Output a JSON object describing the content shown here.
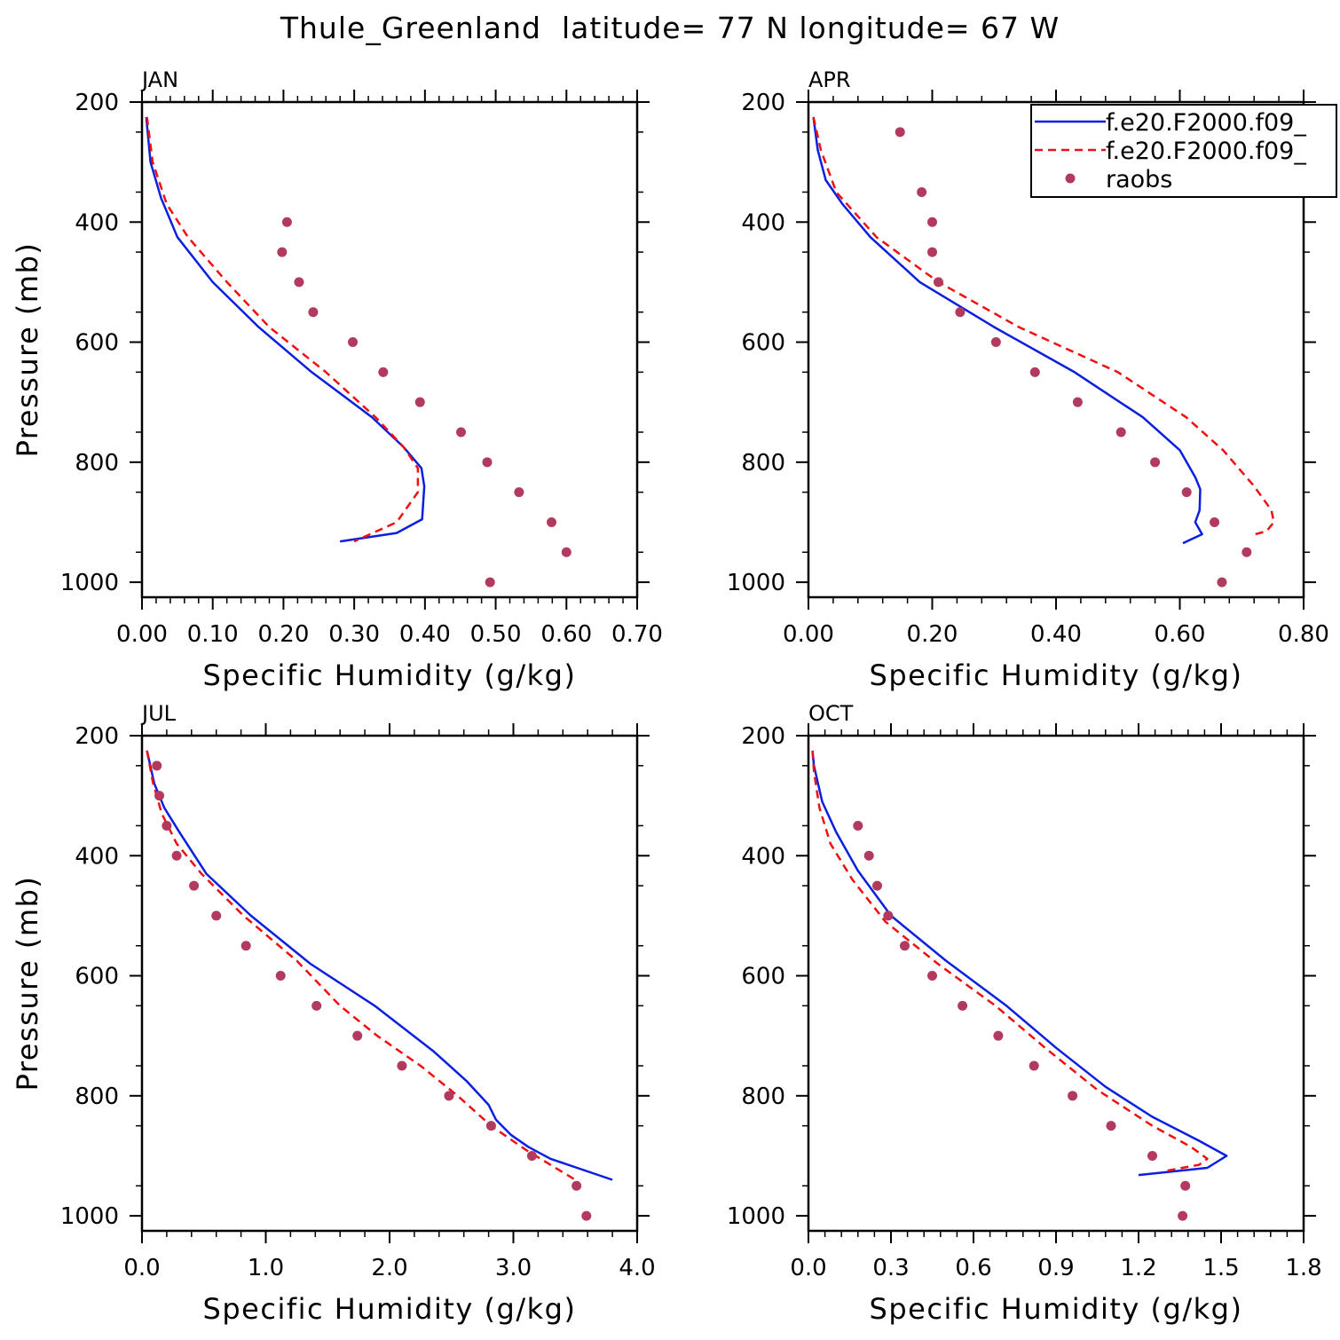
{
  "figure": {
    "title": "Thule_Greenland  latitude= 77 N longitude= 67 W"
  },
  "colors": {
    "model_1": "#0b1fe0",
    "model_2": "#f01010",
    "raobs": "#b23a5e",
    "axis": "#000000"
  },
  "chart_data": [
    {
      "panel_label": "JAN",
      "type": "line",
      "xlabel": "Specific Humidity (g/kg)",
      "ylabel": "Pressure (mb)",
      "xlim": [
        0.0,
        0.7
      ],
      "ylim": [
        200,
        1025
      ],
      "y_inverted": true,
      "xticks": [
        "0.00",
        "0.10",
        "0.20",
        "0.30",
        "0.40",
        "0.50",
        "0.60",
        "0.70"
      ],
      "yticks": [
        "200",
        "400",
        "600",
        "800",
        "1000"
      ],
      "grid": false,
      "series": [
        {
          "name": "f.e20.F2000.f09_",
          "style": "solid",
          "x": [
            0.006,
            0.012,
            0.027,
            0.05,
            0.1,
            0.165,
            0.24,
            0.325,
            0.37,
            0.395,
            0.399,
            0.396,
            0.36,
            0.28
          ],
          "y": [
            225,
            300,
            360,
            425,
            500,
            575,
            650,
            725,
            775,
            810,
            840,
            895,
            918,
            932
          ]
        },
        {
          "name": "f.e20.F2000.f09_",
          "style": "dashed",
          "x": [
            0.007,
            0.015,
            0.035,
            0.065,
            0.12,
            0.18,
            0.26,
            0.33,
            0.37,
            0.39,
            0.39,
            0.36,
            0.3
          ],
          "y": [
            225,
            300,
            370,
            425,
            500,
            575,
            650,
            725,
            775,
            810,
            850,
            900,
            932
          ]
        },
        {
          "name": "raobs",
          "style": "markers",
          "x": [
            0.205,
            0.198,
            0.222,
            0.242,
            0.298,
            0.341,
            0.393,
            0.451,
            0.488,
            0.533,
            0.579,
            0.6,
            0.492
          ],
          "y": [
            400,
            450,
            500,
            550,
            600,
            650,
            700,
            750,
            800,
            850,
            900,
            950,
            1000
          ]
        }
      ]
    },
    {
      "panel_label": "APR",
      "type": "line",
      "xlabel": "Specific Humidity (g/kg)",
      "ylabel": "",
      "xlim": [
        0.0,
        0.8
      ],
      "ylim": [
        200,
        1025
      ],
      "y_inverted": true,
      "xticks": [
        "0.00",
        "0.20",
        "0.40",
        "0.60",
        "0.80"
      ],
      "yticks": [
        "200",
        "400",
        "600",
        "800",
        "1000"
      ],
      "grid": false,
      "legend": {
        "placement": "top-right",
        "entries": [
          "f.e20.F2000.f09_",
          "f.e20.F2000.f09_",
          "raobs"
        ]
      },
      "series": [
        {
          "name": "f.e20.F2000.f09_",
          "style": "solid",
          "x": [
            0.008,
            0.015,
            0.028,
            0.055,
            0.1,
            0.18,
            0.3,
            0.43,
            0.54,
            0.6,
            0.625,
            0.633,
            0.632,
            0.625,
            0.636,
            0.605
          ],
          "y": [
            225,
            280,
            330,
            370,
            425,
            500,
            575,
            650,
            725,
            780,
            825,
            845,
            880,
            900,
            920,
            935
          ]
        },
        {
          "name": "f.e20.F2000.f09_",
          "style": "dashed",
          "x": [
            0.008,
            0.02,
            0.045,
            0.11,
            0.21,
            0.34,
            0.5,
            0.61,
            0.67,
            0.72,
            0.748,
            0.752,
            0.74,
            0.715
          ],
          "y": [
            225,
            280,
            350,
            425,
            500,
            575,
            650,
            725,
            780,
            840,
            880,
            900,
            915,
            922
          ]
        },
        {
          "name": "raobs",
          "style": "markers",
          "x": [
            0.148,
            0.183,
            0.2,
            0.2,
            0.21,
            0.245,
            0.303,
            0.366,
            0.435,
            0.505,
            0.56,
            0.611,
            0.656,
            0.708,
            0.668
          ],
          "y": [
            250,
            350,
            400,
            450,
            500,
            550,
            600,
            650,
            700,
            750,
            800,
            850,
            900,
            950,
            1000
          ]
        }
      ]
    },
    {
      "panel_label": "JUL",
      "type": "line",
      "xlabel": "Specific Humidity (g/kg)",
      "ylabel": "Pressure (mb)",
      "xlim": [
        0.0,
        4.0
      ],
      "ylim": [
        200,
        1025
      ],
      "y_inverted": true,
      "xticks": [
        "0.0",
        "1.0",
        "2.0",
        "3.0",
        "4.0"
      ],
      "yticks": [
        "200",
        "400",
        "600",
        "800",
        "1000"
      ],
      "grid": false,
      "series": [
        {
          "name": "f.e20.F2000.f09_",
          "style": "solid",
          "x": [
            0.04,
            0.1,
            0.18,
            0.3,
            0.52,
            0.88,
            1.36,
            1.88,
            2.35,
            2.62,
            2.8,
            2.86,
            2.98,
            3.12,
            3.3,
            3.8
          ],
          "y": [
            225,
            280,
            320,
            360,
            430,
            500,
            580,
            650,
            725,
            775,
            815,
            840,
            865,
            885,
            905,
            940
          ]
        },
        {
          "name": "f.e20.F2000.f09_",
          "style": "dashed",
          "x": [
            0.04,
            0.09,
            0.16,
            0.28,
            0.48,
            0.82,
            1.25,
            1.6,
            1.9,
            2.25,
            2.55,
            2.82,
            3.1,
            3.5
          ],
          "y": [
            225,
            280,
            330,
            380,
            430,
            500,
            575,
            650,
            700,
            750,
            800,
            850,
            890,
            940
          ]
        },
        {
          "name": "raobs",
          "style": "markers",
          "x": [
            0.12,
            0.14,
            0.2,
            0.28,
            0.42,
            0.6,
            0.84,
            1.12,
            1.41,
            1.74,
            2.1,
            2.48,
            2.82,
            3.15,
            3.51,
            3.59
          ],
          "y": [
            250,
            300,
            350,
            400,
            450,
            500,
            550,
            600,
            650,
            700,
            750,
            800,
            850,
            900,
            950,
            1000
          ]
        }
      ]
    },
    {
      "panel_label": "OCT",
      "type": "line",
      "xlabel": "Specific Humidity (g/kg)",
      "ylabel": "",
      "xlim": [
        0.0,
        1.8
      ],
      "ylim": [
        200,
        1025
      ],
      "y_inverted": true,
      "xticks": [
        "0.0",
        "0.3",
        "0.6",
        "0.9",
        "1.2",
        "1.5",
        "1.8"
      ],
      "yticks": [
        "200",
        "400",
        "600",
        "800",
        "1000"
      ],
      "grid": false,
      "series": [
        {
          "name": "f.e20.F2000.f09_",
          "style": "solid",
          "x": [
            0.015,
            0.02,
            0.05,
            0.1,
            0.18,
            0.3,
            0.5,
            0.72,
            0.9,
            1.08,
            1.25,
            1.42,
            1.52,
            1.45,
            1.2
          ],
          "y": [
            225,
            250,
            310,
            360,
            425,
            500,
            575,
            650,
            720,
            785,
            835,
            875,
            900,
            920,
            932
          ]
        },
        {
          "name": "f.e20.F2000.f09_",
          "style": "dashed",
          "x": [
            0.015,
            0.02,
            0.04,
            0.08,
            0.16,
            0.28,
            0.47,
            0.68,
            0.86,
            1.05,
            1.25,
            1.39,
            1.45,
            1.42,
            1.3
          ],
          "y": [
            225,
            260,
            320,
            380,
            440,
            510,
            580,
            650,
            720,
            790,
            850,
            885,
            905,
            915,
            925
          ]
        },
        {
          "name": "raobs",
          "style": "markers",
          "x": [
            0.18,
            0.22,
            0.25,
            0.29,
            0.35,
            0.45,
            0.56,
            0.69,
            0.82,
            0.96,
            1.1,
            1.25,
            1.37,
            1.36
          ],
          "y": [
            350,
            400,
            450,
            500,
            550,
            600,
            650,
            700,
            750,
            800,
            850,
            900,
            950,
            1000
          ]
        }
      ]
    }
  ]
}
